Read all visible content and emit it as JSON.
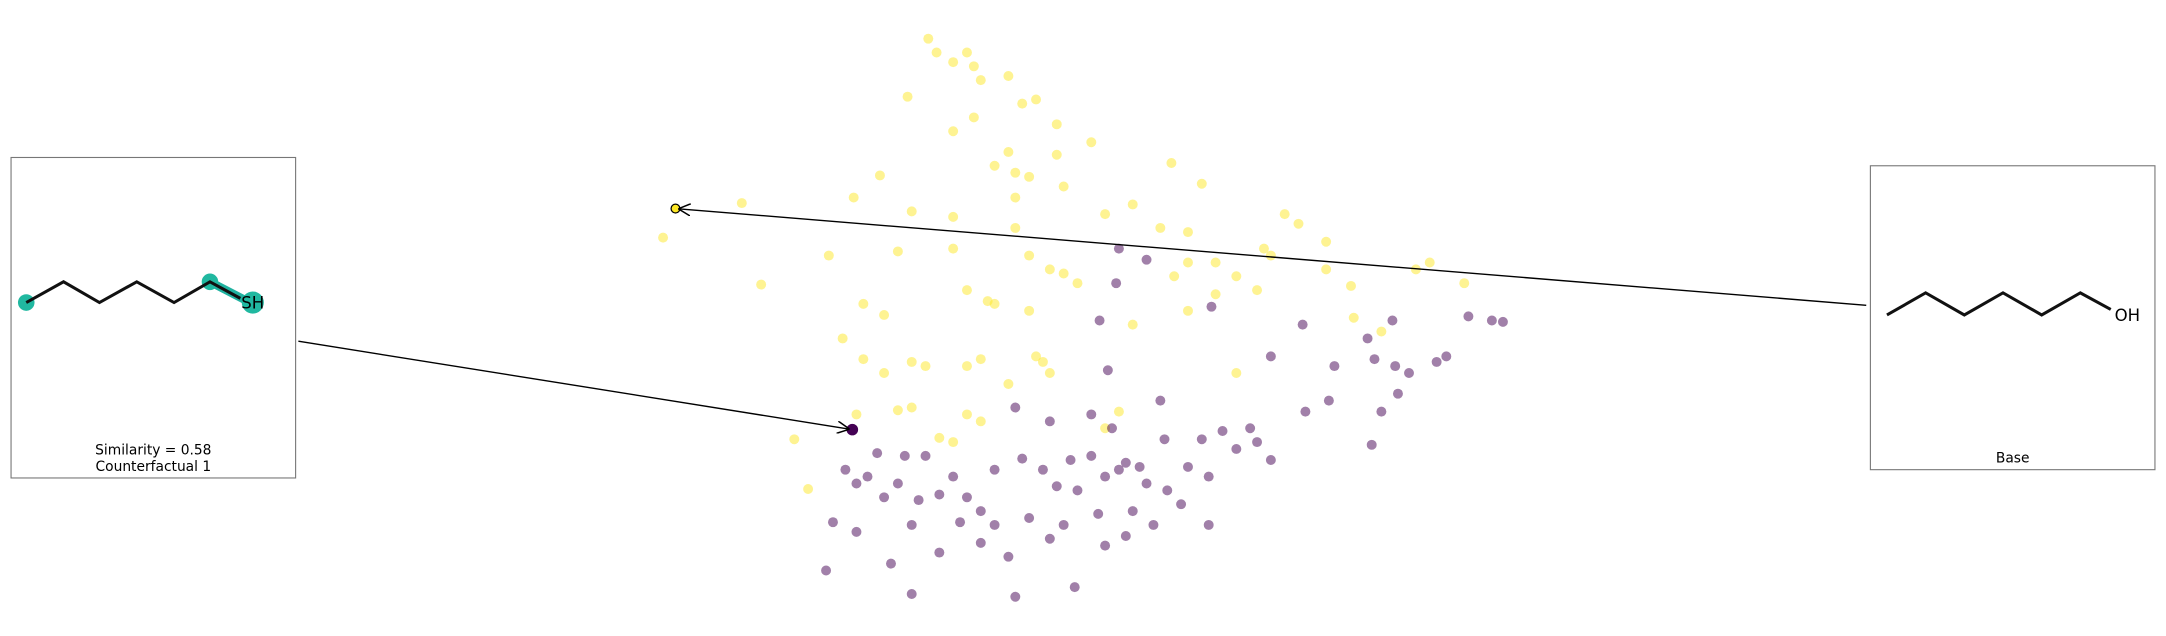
{
  "chart_data": {
    "type": "scatter",
    "xlim": [
      0,
      640
    ],
    "ylim": [
      0,
      420
    ],
    "alpha": 0.5,
    "series": [
      {
        "color": "#fde725",
        "x": [
          212,
          218,
          240,
          245,
          230,
          270,
          250,
          197,
          280,
          290,
          230,
          305,
          260,
          285,
          275,
          330,
          388,
          410,
          177,
          158,
          200,
          230,
          275,
          310,
          340,
          380,
          400,
          470,
          480,
          455,
          575,
          565,
          600,
          518,
          140,
          190,
          275,
          285,
          300,
          310,
          240,
          255,
          260,
          285,
          360,
          400,
          435,
          450,
          165,
          180,
          150,
          165,
          180,
          200,
          210,
          240,
          250,
          290,
          295,
          300,
          270,
          240,
          250,
          190,
          160,
          350,
          340,
          115,
          125,
          435,
          520,
          540,
          230,
          20,
          77,
          91,
          230,
          270,
          320,
          390,
          420,
          500,
          500,
          460,
          360,
          400,
          305,
          245,
          200,
          220,
          420
        ],
        "values": [
          412,
          402,
          402,
          392,
          395,
          385,
          382,
          370,
          365,
          368,
          345,
          350,
          320,
          312,
          315,
          337,
          322,
          307,
          313,
          297,
          287,
          283,
          297,
          305,
          285,
          275,
          272,
          285,
          278,
          260,
          250,
          245,
          235,
          233,
          255,
          258,
          275,
          255,
          245,
          242,
          230,
          222,
          220,
          215,
          205,
          215,
          240,
          230,
          220,
          212,
          195,
          180,
          170,
          178,
          175,
          175,
          180,
          182,
          178,
          170,
          162,
          140,
          135,
          143,
          140,
          142,
          130,
          122,
          86,
          170,
          210,
          200,
          120,
          268,
          293,
          234,
          260,
          330,
          235,
          240,
          250,
          265,
          245,
          255,
          292,
          250,
          328,
          355,
          145,
          123,
          227
        ]
      },
      {
        "color": "#440154",
        "x": [
          175,
          195,
          210,
          152,
          160,
          190,
          205,
          220,
          230,
          240,
          250,
          260,
          235,
          200,
          160,
          143,
          138,
          185,
          200,
          220,
          250,
          270,
          275,
          300,
          310,
          318,
          280,
          295,
          305,
          315,
          330,
          340,
          350,
          355,
          365,
          370,
          385,
          360,
          335,
          340,
          355,
          375,
          395,
          415,
          435,
          450,
          460,
          415,
          425,
          445,
          410,
          383,
          330,
          345,
          275,
          342,
          380,
          417,
          460,
          485,
          502,
          483,
          506,
          548,
          530,
          535,
          550,
          560,
          580,
          587,
          540,
          552,
          533,
          603,
          620,
          628,
          350,
          348,
          370,
          336,
          300,
          180,
          168,
          260,
          320,
          285,
          400
        ],
        "values": [
          112,
          110,
          110,
          100,
          90,
          90,
          78,
          82,
          95,
          80,
          70,
          60,
          62,
          60,
          55,
          62,
          27,
          32,
          10,
          40,
          47,
          37,
          8,
          50,
          60,
          15,
          108,
          100,
          88,
          107,
          110,
          95,
          100,
          105,
          102,
          90,
          85,
          70,
          68,
          45,
          52,
          60,
          75,
          95,
          115,
          120,
          107,
          60,
          128,
          130,
          122,
          122,
          140,
          130,
          145,
          172,
          150,
          218,
          182,
          142,
          150,
          205,
          175,
          208,
          195,
          180,
          175,
          170,
          178,
          182,
          142,
          155,
          118,
          211,
          208,
          207,
          260,
          235,
          252,
          208,
          135,
          80,
          95,
          100,
          85,
          65,
          102
        ]
      }
    ],
    "annotations": [
      {
        "x": 157,
        "y": 129,
        "color": "#440154",
        "texts": [
          "Similarity = 0.58",
          "Counterfactual 1"
        ],
        "atom_label": "SH"
      },
      {
        "x": 29,
        "y": 289,
        "color": "#fde725",
        "texts": [
          "Base"
        ],
        "atom_label": "OH"
      }
    ]
  }
}
